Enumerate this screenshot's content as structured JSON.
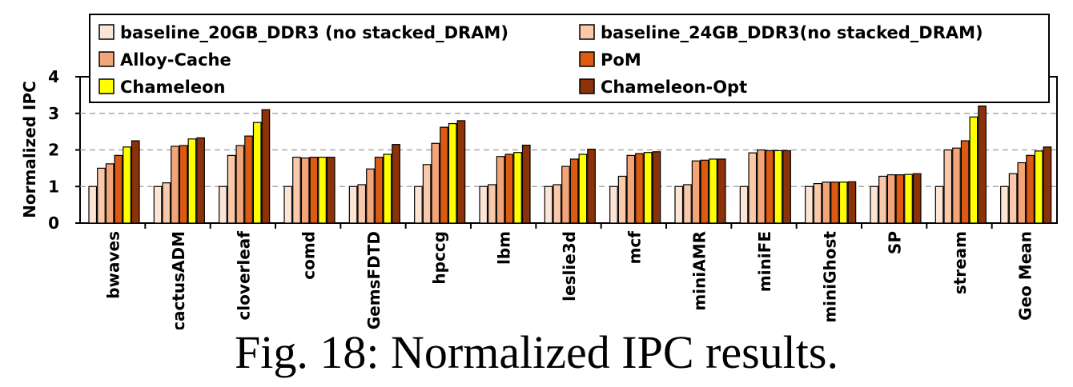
{
  "chart_data": {
    "type": "bar",
    "ylabel": "Normalized IPC",
    "ylim": [
      0,
      4
    ],
    "yticks": [
      "0",
      "1",
      "2",
      "3",
      "4"
    ],
    "grid": true,
    "legend_position": "top",
    "categories": [
      "bwaves",
      "cactusADM",
      "cloverleaf",
      "comd",
      "GemsFDTD",
      "hpccg",
      "lbm",
      "leslie3d",
      "mcf",
      "miniAMR",
      "miniFE",
      "miniGhost",
      "SP",
      "stream",
      "Geo Mean"
    ],
    "series": [
      {
        "name": "baseline_20GB_DDR3 (no stacked_DRAM)",
        "color": "#fde5d6",
        "values": [
          1.0,
          1.0,
          1.0,
          1.0,
          1.0,
          1.0,
          1.0,
          1.0,
          1.0,
          1.0,
          1.0,
          1.0,
          1.0,
          1.0,
          1.0
        ]
      },
      {
        "name": "baseline_24GB_DDR3(no stacked_DRAM)",
        "color": "#f9c9aa",
        "values": [
          1.5,
          1.1,
          1.85,
          1.8,
          1.05,
          1.6,
          1.05,
          1.05,
          1.28,
          1.05,
          1.92,
          1.08,
          1.28,
          2.0,
          1.35
        ]
      },
      {
        "name": "Alloy-Cache",
        "color": "#f4a578",
        "values": [
          1.62,
          2.1,
          2.12,
          1.78,
          1.48,
          2.18,
          1.82,
          1.55,
          1.85,
          1.7,
          2.0,
          1.12,
          1.32,
          2.05,
          1.65
        ]
      },
      {
        "name": "PoM",
        "color": "#dc5a12",
        "values": [
          1.85,
          2.12,
          2.38,
          1.8,
          1.8,
          2.62,
          1.88,
          1.75,
          1.9,
          1.72,
          1.98,
          1.12,
          1.32,
          2.25,
          1.85
        ]
      },
      {
        "name": "Chameleon",
        "color": "#ffff00",
        "values": [
          2.08,
          2.3,
          2.75,
          1.8,
          1.88,
          2.72,
          1.93,
          1.88,
          1.93,
          1.75,
          1.98,
          1.12,
          1.33,
          2.9,
          1.97
        ]
      },
      {
        "name": "Chameleon-Opt",
        "color": "#8b3208",
        "values": [
          2.25,
          2.33,
          3.1,
          1.8,
          2.15,
          2.8,
          2.13,
          2.02,
          1.95,
          1.75,
          1.98,
          1.13,
          1.35,
          3.2,
          2.08
        ]
      }
    ]
  },
  "caption": "Fig. 18: Normalized IPC results."
}
